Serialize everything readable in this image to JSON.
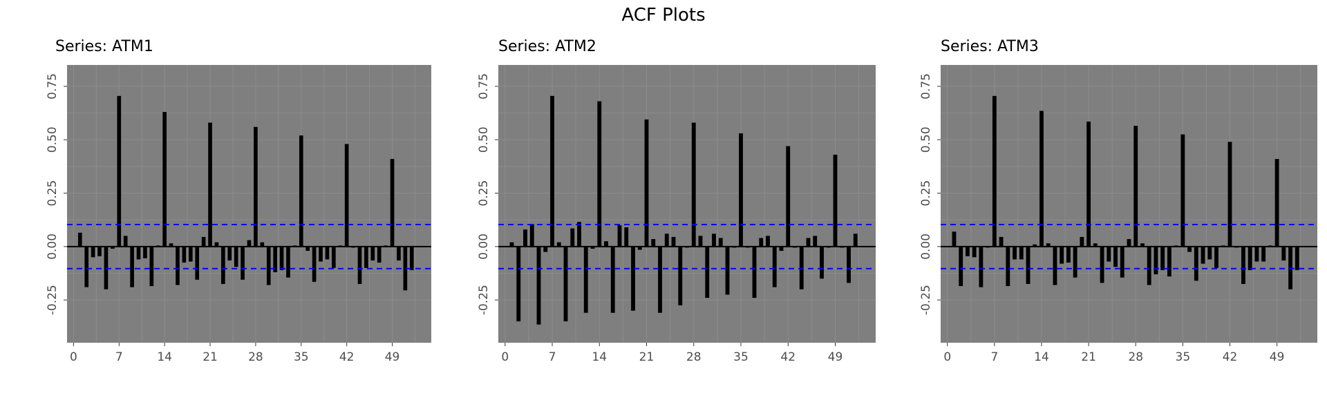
{
  "figure": {
    "title": "ACF Plots"
  },
  "style": {
    "panel_background": "#7f7f7f",
    "grid_color": "#8c8c8c",
    "bar_color": "#000000",
    "zero_line_color": "#000000",
    "ci_line_color": "#0000ff",
    "tick_label_color": "#4d4d4d"
  },
  "chart_data": [
    {
      "type": "bar",
      "title": "Series: ATM1",
      "xlabel": "",
      "ylabel": "",
      "x_ticks": [
        0,
        7,
        14,
        21,
        28,
        35,
        42,
        49
      ],
      "y_ticks": [
        -0.25,
        0.0,
        0.25,
        0.5,
        0.75
      ],
      "y_tick_labels": [
        "-0.25",
        "0.00",
        "0.25",
        "0.50",
        "0.75"
      ],
      "xlim": [
        -1,
        55
      ],
      "ylim": [
        -0.45,
        0.85
      ],
      "ci": [
        -0.103,
        0.103
      ],
      "lags": [
        1,
        2,
        3,
        4,
        5,
        6,
        7,
        8,
        9,
        10,
        11,
        12,
        13,
        14,
        15,
        16,
        17,
        18,
        19,
        20,
        21,
        22,
        23,
        24,
        25,
        26,
        27,
        28,
        29,
        30,
        31,
        32,
        33,
        34,
        35,
        36,
        37,
        38,
        39,
        40,
        41,
        42,
        43,
        44,
        45,
        46,
        47,
        48,
        49,
        50,
        51,
        52
      ],
      "acf": [
        0.065,
        -0.19,
        -0.05,
        -0.045,
        -0.2,
        -0.01,
        0.705,
        0.05,
        -0.19,
        -0.06,
        -0.055,
        -0.185,
        0.005,
        0.63,
        0.015,
        -0.18,
        -0.075,
        -0.07,
        -0.155,
        0.045,
        0.58,
        0.02,
        -0.175,
        -0.065,
        -0.095,
        -0.155,
        0.03,
        0.56,
        0.02,
        -0.18,
        -0.12,
        -0.11,
        -0.145,
        0.005,
        0.52,
        -0.02,
        -0.165,
        -0.07,
        -0.06,
        -0.1,
        0.005,
        0.48,
        -0.005,
        -0.175,
        -0.1,
        -0.065,
        -0.075,
        0.005,
        0.41,
        -0.065,
        -0.205,
        -0.11
      ]
    },
    {
      "type": "bar",
      "title": "Series: ATM2",
      "xlabel": "",
      "ylabel": "",
      "x_ticks": [
        0,
        7,
        14,
        21,
        28,
        35,
        42,
        49
      ],
      "y_ticks": [
        -0.25,
        0.0,
        0.25,
        0.5,
        0.75
      ],
      "y_tick_labels": [
        "-0.25",
        "0.00",
        "0.25",
        "0.50",
        "0.75"
      ],
      "xlim": [
        -1,
        55
      ],
      "ylim": [
        -0.45,
        0.85
      ],
      "ci": [
        -0.103,
        0.103
      ],
      "lags": [
        1,
        2,
        3,
        4,
        5,
        6,
        7,
        8,
        9,
        10,
        11,
        12,
        13,
        14,
        15,
        16,
        17,
        18,
        19,
        20,
        21,
        22,
        23,
        24,
        25,
        26,
        27,
        28,
        29,
        30,
        31,
        32,
        33,
        34,
        35,
        36,
        37,
        38,
        39,
        40,
        41,
        42,
        43,
        44,
        45,
        46,
        47,
        48,
        49,
        50,
        51,
        52
      ],
      "acf": [
        0.02,
        -0.35,
        0.08,
        0.105,
        -0.365,
        -0.025,
        0.705,
        0.02,
        -0.35,
        0.085,
        0.115,
        -0.31,
        -0.01,
        0.68,
        0.025,
        -0.31,
        0.1,
        0.09,
        -0.3,
        -0.015,
        0.595,
        0.035,
        -0.31,
        0.06,
        0.045,
        -0.275,
        -0.005,
        0.58,
        0.05,
        -0.24,
        0.06,
        0.04,
        -0.225,
        -0.005,
        0.53,
        -0.005,
        -0.24,
        0.04,
        0.05,
        -0.19,
        -0.02,
        0.47,
        -0.005,
        -0.2,
        0.04,
        0.05,
        -0.15,
        -0.005,
        0.43,
        -0.005,
        -0.17,
        0.06
      ]
    },
    {
      "type": "bar",
      "title": "Series: ATM3",
      "xlabel": "",
      "ylabel": "",
      "x_ticks": [
        0,
        7,
        14,
        21,
        28,
        35,
        42,
        49
      ],
      "y_ticks": [
        -0.25,
        0.0,
        0.25,
        0.5,
        0.75
      ],
      "y_tick_labels": [
        "-0.25",
        "0.00",
        "0.25",
        "0.50",
        "0.75"
      ],
      "xlim": [
        -1,
        55
      ],
      "ylim": [
        -0.45,
        0.85
      ],
      "ci": [
        -0.103,
        0.103
      ],
      "lags": [
        1,
        2,
        3,
        4,
        5,
        6,
        7,
        8,
        9,
        10,
        11,
        12,
        13,
        14,
        15,
        16,
        17,
        18,
        19,
        20,
        21,
        22,
        23,
        24,
        25,
        26,
        27,
        28,
        29,
        30,
        31,
        32,
        33,
        34,
        35,
        36,
        37,
        38,
        39,
        40,
        41,
        42,
        43,
        44,
        45,
        46,
        47,
        48,
        49,
        50,
        51,
        52
      ],
      "acf": [
        0.07,
        -0.185,
        -0.045,
        -0.05,
        -0.19,
        -0.005,
        0.705,
        0.045,
        -0.185,
        -0.06,
        -0.06,
        -0.175,
        0.01,
        0.635,
        0.015,
        -0.18,
        -0.08,
        -0.075,
        -0.145,
        0.045,
        0.585,
        0.015,
        -0.17,
        -0.07,
        -0.095,
        -0.145,
        0.035,
        0.565,
        0.015,
        -0.18,
        -0.13,
        -0.11,
        -0.14,
        0.005,
        0.525,
        -0.025,
        -0.16,
        -0.08,
        -0.06,
        -0.1,
        0.005,
        0.49,
        -0.005,
        -0.175,
        -0.11,
        -0.07,
        -0.07,
        0.005,
        0.41,
        -0.065,
        -0.2,
        -0.11
      ]
    }
  ]
}
